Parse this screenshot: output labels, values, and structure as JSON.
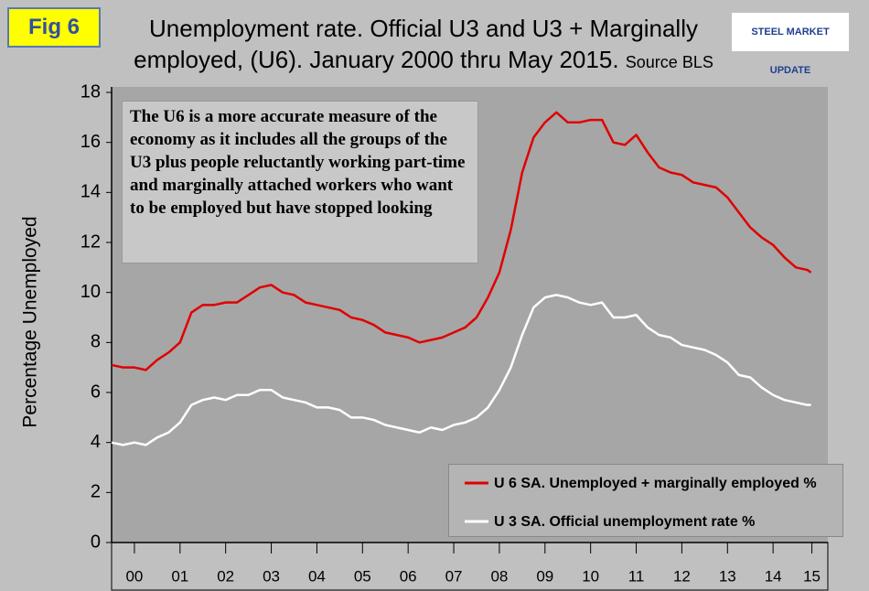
{
  "badge": "Fig 6",
  "logo": "STEEL MARKET UPDATE",
  "chart_data": {
    "type": "line",
    "title": "Unemployment rate. Official U3 and U3 + Marginally employed, (U6). January 2000 thru May 2015.",
    "source": "Source BLS",
    "ylabel": "Percentage Unemployed",
    "annotation": "The U6 is a more accurate measure of the economy as it includes all the groups of the U3 plus people reluctantly working part-time and marginally attached workers who want to be employed but have stopped looking",
    "x": [
      2000,
      2000.25,
      2000.5,
      2000.75,
      2001,
      2001.25,
      2001.5,
      2001.75,
      2002,
      2002.25,
      2002.5,
      2002.75,
      2003,
      2003.25,
      2003.5,
      2003.75,
      2004,
      2004.25,
      2004.5,
      2004.75,
      2005,
      2005.25,
      2005.5,
      2005.75,
      2006,
      2006.25,
      2006.5,
      2006.75,
      2007,
      2007.25,
      2007.5,
      2007.75,
      2008,
      2008.25,
      2008.5,
      2008.75,
      2009,
      2009.25,
      2009.5,
      2009.75,
      2010,
      2010.25,
      2010.5,
      2010.75,
      2011,
      2011.25,
      2011.5,
      2011.75,
      2012,
      2012.25,
      2012.5,
      2012.75,
      2013,
      2013.25,
      2013.5,
      2013.75,
      2014,
      2014.25,
      2014.5,
      2014.75,
      2015,
      2015.25,
      2015.33
    ],
    "series": [
      {
        "name": "U 6 SA. Unemployed + marginally employed %",
        "color": "#e00000",
        "values": [
          7.1,
          7.0,
          7.0,
          6.9,
          7.3,
          7.6,
          8.0,
          9.2,
          9.5,
          9.5,
          9.6,
          9.6,
          9.9,
          10.2,
          10.3,
          10.0,
          9.9,
          9.6,
          9.5,
          9.4,
          9.3,
          9.0,
          8.9,
          8.7,
          8.4,
          8.3,
          8.2,
          8.0,
          8.1,
          8.2,
          8.4,
          8.6,
          9.0,
          9.8,
          10.8,
          12.5,
          14.8,
          16.2,
          16.8,
          17.2,
          16.8,
          16.8,
          16.9,
          16.9,
          16.0,
          15.9,
          16.3,
          15.6,
          15.0,
          14.8,
          14.7,
          14.4,
          14.3,
          14.2,
          13.8,
          13.2,
          12.6,
          12.2,
          11.9,
          11.4,
          11.0,
          10.9,
          10.8
        ]
      },
      {
        "name": "U 3 SA. Official unemployment rate %",
        "color": "#ffffff",
        "values": [
          4.0,
          3.9,
          4.0,
          3.9,
          4.2,
          4.4,
          4.8,
          5.5,
          5.7,
          5.8,
          5.7,
          5.9,
          5.9,
          6.1,
          6.1,
          5.8,
          5.7,
          5.6,
          5.4,
          5.4,
          5.3,
          5.0,
          5.0,
          4.9,
          4.7,
          4.6,
          4.5,
          4.4,
          4.6,
          4.5,
          4.7,
          4.8,
          5.0,
          5.4,
          6.1,
          7.0,
          8.3,
          9.4,
          9.8,
          9.9,
          9.8,
          9.6,
          9.5,
          9.6,
          9.0,
          9.0,
          9.1,
          8.6,
          8.3,
          8.2,
          7.9,
          7.8,
          7.7,
          7.5,
          7.2,
          6.7,
          6.6,
          6.2,
          5.9,
          5.7,
          5.6,
          5.5,
          5.5
        ]
      }
    ],
    "xlim": [
      2000,
      2015.7
    ],
    "xticks": [
      {
        "value": 2000.5,
        "label": "00"
      },
      {
        "value": 2001.5,
        "label": "01"
      },
      {
        "value": 2002.5,
        "label": "02"
      },
      {
        "value": 2003.5,
        "label": "03"
      },
      {
        "value": 2004.5,
        "label": "04"
      },
      {
        "value": 2005.5,
        "label": "05"
      },
      {
        "value": 2006.5,
        "label": "06"
      },
      {
        "value": 2007.5,
        "label": "07"
      },
      {
        "value": 2008.5,
        "label": "08"
      },
      {
        "value": 2009.5,
        "label": "09"
      },
      {
        "value": 2010.5,
        "label": "10"
      },
      {
        "value": 2011.5,
        "label": "11"
      },
      {
        "value": 2012.5,
        "label": "12"
      },
      {
        "value": 2013.5,
        "label": "13"
      },
      {
        "value": 2014.5,
        "label": "14"
      },
      {
        "value": 2015.35,
        "label": "15"
      }
    ],
    "ylim": [
      0,
      18
    ],
    "yticks": [
      0,
      2,
      4,
      6,
      8,
      10,
      12,
      14,
      16,
      18
    ],
    "grid": false,
    "legend": "bottom-right"
  }
}
